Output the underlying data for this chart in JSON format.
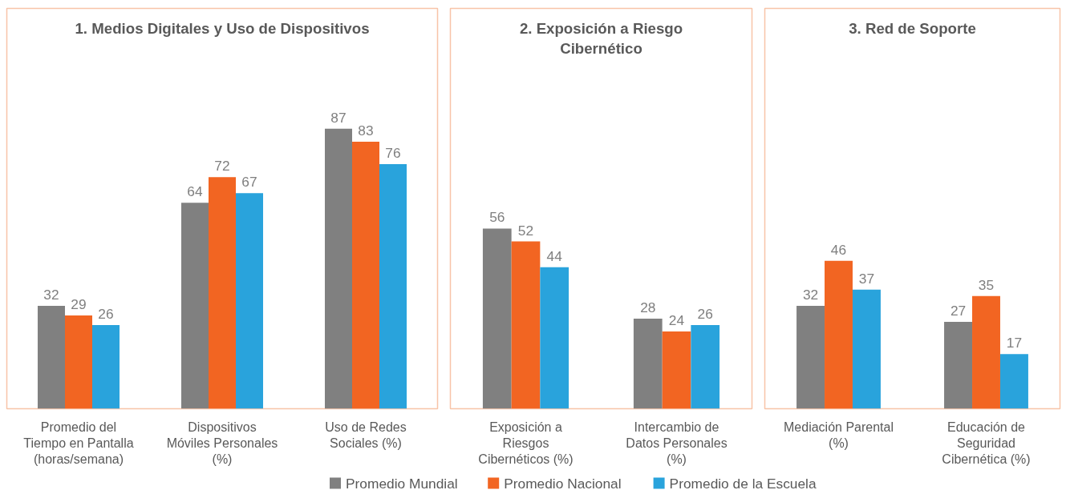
{
  "chart_data": [
    {
      "type": "bar",
      "title": "1. Medios Digitales y Uso de Dispositivos",
      "categories": [
        "Promedio del Tiempo en Pantalla (horas/semana)",
        "Dispositivos Móviles Personales (%)",
        "Uso de Redes Sociales (%)"
      ],
      "data_labels": true,
      "grid": false,
      "legend": false,
      "series": [
        {
          "color": "#808080",
          "values": [
            32,
            64,
            87
          ]
        },
        {
          "color": "#f26522",
          "values": [
            29,
            72,
            83
          ]
        },
        {
          "color": "#29a3dc",
          "values": [
            26,
            67,
            76
          ]
        }
      ]
    },
    {
      "type": "bar",
      "title": "2. Exposición a Riesgo Cibernético",
      "categories": [
        "Exposición a Riesgos Cibernéticos (%)",
        "Intercambio de Datos Personales (%)"
      ],
      "data_labels": true,
      "grid": false,
      "legend": "bottom",
      "series": [
        {
          "name": "Promedio Mundial",
          "color": "#808080",
          "values": [
            56,
            28
          ]
        },
        {
          "name": "Promedio Nacional",
          "color": "#f26522",
          "values": [
            52,
            24
          ]
        },
        {
          "name": "Promedio de la Escuela",
          "color": "#29a3dc",
          "values": [
            44,
            26
          ]
        }
      ]
    },
    {
      "type": "bar",
      "title": "3. Red de Soporte",
      "categories": [
        "Mediación Parental (%)",
        "Educación de Seguridad Cibernética (%)"
      ],
      "data_labels": true,
      "grid": false,
      "legend": false,
      "series": [
        {
          "color": "#808080",
          "values": [
            32,
            27
          ]
        },
        {
          "color": "#f26522",
          "values": [
            46,
            35
          ]
        },
        {
          "color": "#29a3dc",
          "values": [
            37,
            17
          ]
        }
      ]
    }
  ]
}
